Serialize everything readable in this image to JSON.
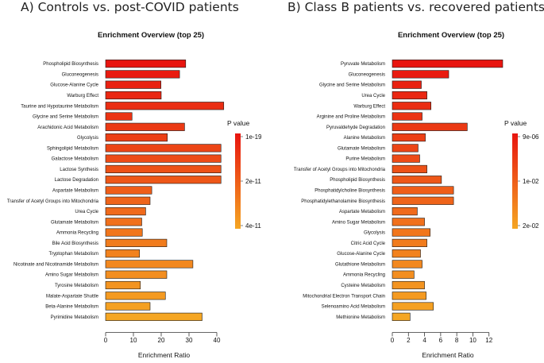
{
  "panels": [
    {
      "label": "A) Controls vs. post-COVID patients"
    },
    {
      "label": "B) Class B patients vs. recovered patients"
    }
  ],
  "chart_data": [
    {
      "type": "bar",
      "orientation": "horizontal",
      "title": "Enrichment Overview (top 25)",
      "xlabel": "Enrichment Ratio",
      "ylabel": "",
      "xlim": [
        0,
        42
      ],
      "xticks": [
        0,
        10,
        20,
        30,
        40
      ],
      "categories": [
        "Phospholipid Biosynthesis",
        "Gluconeogenesis",
        "Glucose-Alanine Cycle",
        "Warburg Effect",
        "Taurine and Hypotaurine Metabolism",
        "Glycine and Serine Metabolism",
        "Arachidonic Acid Metabolism",
        "Glycolysis",
        "Sphingolipid Metabolism",
        "Galactose Metabolism",
        "Lactose Synthesis",
        "Lactose Degradation",
        "Aspartate Metabolism",
        "Transfer of Acetyl Groups into Mitochondria",
        "Urea Cycle",
        "Glutamate Metabolism",
        "Ammonia Recycling",
        "Bile Acid Biosynthesis",
        "Tryptophan Metabolism",
        "Nicotinate and Nicotinamide Metabolism",
        "Amino Sugar Metabolism",
        "Tyrosine Metabolism",
        "Malate-Aspartate Shuttle",
        "Beta-Alanine Metabolism",
        "Pyrimidine Metabolism"
      ],
      "values": [
        28.8,
        26.6,
        19.9,
        20.0,
        42.5,
        9.5,
        28.4,
        22.2,
        41.5,
        41.5,
        41.5,
        41.5,
        16.6,
        16.0,
        14.4,
        13.0,
        13.2,
        22.0,
        12.2,
        31.4,
        22.0,
        12.5,
        21.5,
        16.0,
        34.7
      ],
      "legend": {
        "title": "P value",
        "ticks": [
          "1e-19",
          "2e-11",
          "4e-11"
        ]
      },
      "colors": {
        "low": "#e8150f",
        "high": "#f5a623"
      }
    },
    {
      "type": "bar",
      "orientation": "horizontal",
      "title": "Enrichment Overview (top 25)",
      "xlabel": "Enrichment Ratio",
      "ylabel": "",
      "xlim": [
        0,
        13.8
      ],
      "xticks": [
        0,
        2,
        4,
        6,
        8,
        10,
        12
      ],
      "categories": [
        "Pyruvate Metabolism",
        "Gluconeogenesis",
        "Glycine and Serine Metabolism",
        "Urea Cycle",
        "Warburg Effect",
        "Arginine and Proline Metabolism",
        "Pyruvaldehyde Degradation",
        "Alanine Metabolism",
        "Glutamate Metabolism",
        "Purine Metabolism",
        "Transfer of Acetyl Groups into Mitochondria",
        "Phospholipid Biosynthesis",
        "Phosphatidylcholine Biosynthesis",
        "Phosphatidylethanolamine Biosynthesis",
        "Aspartate Metabolism",
        "Amino Sugar Metabolism",
        "Glycolysis",
        "Citric Acid Cycle",
        "Glucose-Alanine Cycle",
        "Glutathione Metabolism",
        "Ammonia Recycling",
        "Cysteine Metabolism",
        "Mitochondrial Electron Transport Chain",
        "Selenoamino Acid Metabolism",
        "Methionine Metabolism"
      ],
      "values": [
        13.7,
        7.0,
        3.6,
        4.3,
        4.8,
        3.7,
        9.3,
        4.1,
        3.2,
        3.4,
        4.3,
        6.1,
        7.6,
        7.6,
        3.1,
        4.0,
        4.7,
        4.3,
        3.5,
        3.7,
        2.7,
        4.0,
        4.2,
        5.1,
        2.2
      ],
      "legend": {
        "title": "P value",
        "ticks": [
          "9e-06",
          "1e-02",
          "2e-02"
        ]
      },
      "colors": {
        "low": "#e8150f",
        "high": "#f5a623"
      }
    }
  ]
}
